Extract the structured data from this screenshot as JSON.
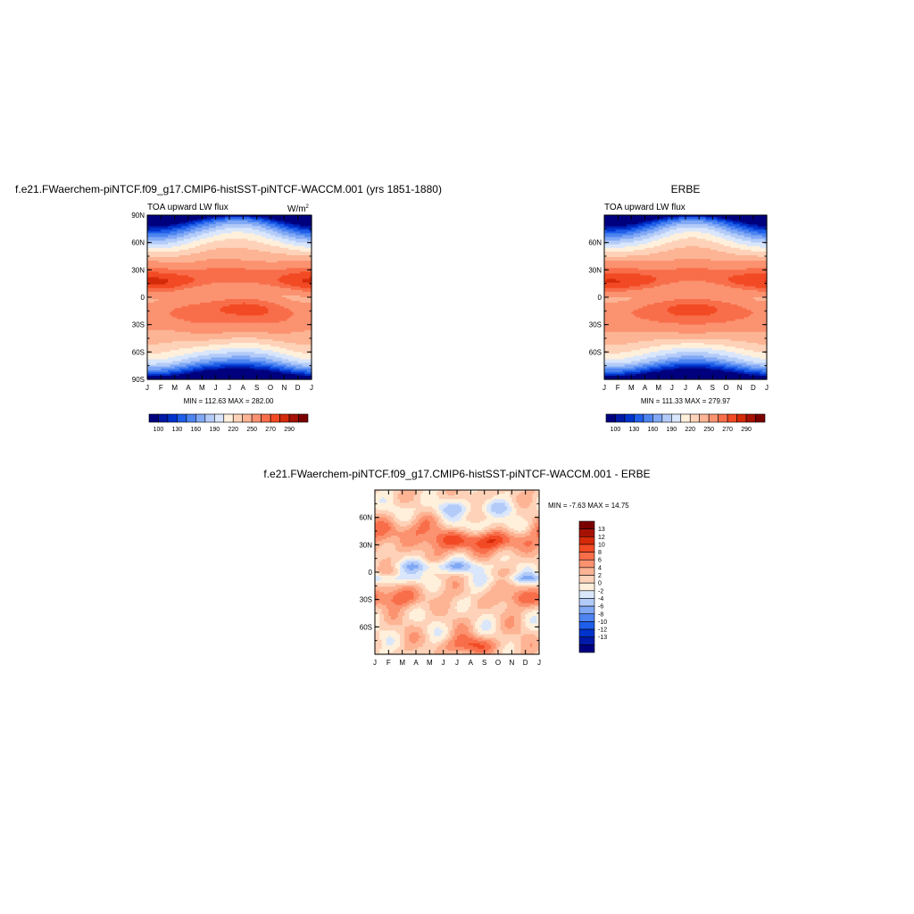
{
  "colors": {
    "abs_levels": [
      "#00007f",
      "#0019a6",
      "#0033cc",
      "#1f5ee8",
      "#4d84f0",
      "#80a8f5",
      "#b3cbf8",
      "#d9e6fb",
      "#fff0dc",
      "#fdd2b8",
      "#fcb494",
      "#fb9270",
      "#f86e4a",
      "#f24a24",
      "#d42a0a",
      "#a51205",
      "#7a0000"
    ],
    "diff_levels": [
      "#00007f",
      "#0019a6",
      "#0033cc",
      "#1f5ee8",
      "#4d84f0",
      "#80a8f5",
      "#b3cbf8",
      "#d9e6fb",
      "#fff0dc",
      "#fdd2b8",
      "#fcb494",
      "#fb9270",
      "#f86e4a",
      "#f24a24",
      "#d42a0a",
      "#a51205",
      "#7a0000"
    ]
  },
  "months": [
    "J",
    "F",
    "M",
    "A",
    "M",
    "J",
    "J",
    "A",
    "S",
    "O",
    "N",
    "D",
    "J"
  ],
  "chart_data": [
    {
      "type": "heatmap",
      "id": "model",
      "title": "f.e21.FWaerchem-piNTCF.f09_g17.CMIP6-histSST-piNTCF-WACCM.001 (yrs 1851-1880)",
      "subtitle_left": "TOA upward LW flux",
      "units": "W/m",
      "units_sup": "2",
      "x": [
        "J",
        "F",
        "M",
        "A",
        "M",
        "J",
        "J",
        "A",
        "S",
        "O",
        "N",
        "D",
        "J"
      ],
      "ylim": [
        -90,
        90
      ],
      "y_ticks": [
        {
          "value": 90,
          "label": "90N"
        },
        {
          "value": 60,
          "label": "60N"
        },
        {
          "value": 30,
          "label": "30N"
        },
        {
          "value": 0,
          "label": "0"
        },
        {
          "value": -30,
          "label": "30S"
        },
        {
          "value": -60,
          "label": "60S"
        },
        {
          "value": -90,
          "label": "90S"
        }
      ],
      "min": 112.63,
      "max": 282.0,
      "minmax_text": "MIN = 112.63 MAX = 282.00",
      "levels": [
        90,
        100,
        115,
        130,
        145,
        160,
        175,
        190,
        205,
        220,
        235,
        250,
        260,
        270,
        280,
        290
      ],
      "colorbar_labels": [
        "100",
        "130",
        "160",
        "190",
        "220",
        "250",
        "270",
        "290"
      ]
    },
    {
      "type": "heatmap",
      "id": "obs",
      "title": "ERBE",
      "subtitle_left": "TOA upward LW flux",
      "x": [
        "J",
        "F",
        "M",
        "A",
        "M",
        "J",
        "J",
        "A",
        "S",
        "O",
        "N",
        "D",
        "J"
      ],
      "ylim": [
        -90,
        90
      ],
      "y_ticks": [
        {
          "value": 60,
          "label": "60N"
        },
        {
          "value": 30,
          "label": "30N"
        },
        {
          "value": 0,
          "label": "0"
        },
        {
          "value": -30,
          "label": "30S"
        },
        {
          "value": -60,
          "label": "60S"
        }
      ],
      "min": 111.33,
      "max": 279.97,
      "minmax_text": "MIN = 111.33 MAX = 279.97",
      "levels": [
        90,
        100,
        115,
        130,
        145,
        160,
        175,
        190,
        205,
        220,
        235,
        250,
        260,
        270,
        280,
        290
      ],
      "colorbar_labels": [
        "100",
        "130",
        "160",
        "190",
        "220",
        "250",
        "270",
        "290"
      ]
    },
    {
      "type": "heatmap",
      "id": "diff",
      "title": "f.e21.FWaerchem-piNTCF.f09_g17.CMIP6-histSST-piNTCF-WACCM.001 - ERBE",
      "x": [
        "J",
        "F",
        "M",
        "A",
        "M",
        "J",
        "J",
        "A",
        "S",
        "O",
        "N",
        "D",
        "J"
      ],
      "ylim": [
        -90,
        90
      ],
      "y_ticks": [
        {
          "value": 60,
          "label": "60N"
        },
        {
          "value": 30,
          "label": "30N"
        },
        {
          "value": 0,
          "label": "0"
        },
        {
          "value": -30,
          "label": "30S"
        },
        {
          "value": -60,
          "label": "60S"
        }
      ],
      "min": -7.63,
      "max": 14.75,
      "minmax_text": "MIN =  -7.63 MAX =  14.75",
      "levels": [
        -13,
        -12,
        -10,
        -8,
        -6,
        -4,
        -2,
        0,
        2,
        4,
        6,
        8,
        10,
        12,
        13
      ],
      "colorbar_labels": [
        "13",
        "12",
        "10",
        "8",
        "6",
        "4",
        "2",
        "0",
        "-2",
        "-4",
        "-6",
        "-8",
        "-10",
        "-12",
        "-13"
      ]
    }
  ]
}
